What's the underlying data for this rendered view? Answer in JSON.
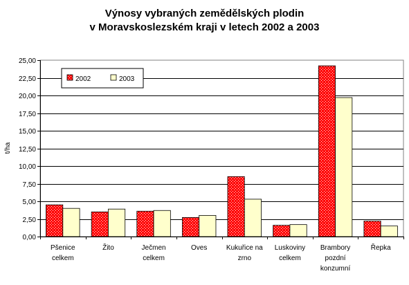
{
  "chart_data": {
    "type": "bar",
    "title_lines": [
      "Výnosy vybraných zemědělských plodin",
      "v Moravskoslezském kraji v letech 2002 a 2003"
    ],
    "ylabel": "t/ha",
    "xlabel": "",
    "ylim": [
      0,
      25
    ],
    "ytick_step": 2.5,
    "ytick_labels": [
      "0,00",
      "2,50",
      "5,00",
      "7,50",
      "10,00",
      "12,50",
      "15,00",
      "17,50",
      "20,00",
      "22,50",
      "25,00"
    ],
    "grid": true,
    "legend_position": "top-left",
    "categories": [
      [
        "Pšenice",
        "celkem"
      ],
      [
        "Žito"
      ],
      [
        "Ječmen",
        "celkem"
      ],
      [
        "Oves"
      ],
      [
        "Kukuřice na",
        "zrno"
      ],
      [
        "Luskoviny",
        "celkem"
      ],
      [
        "Brambory",
        "pozdní",
        "konzumní"
      ],
      [
        "Řepka"
      ]
    ],
    "series": [
      {
        "name": "2002",
        "color": "#ff0000",
        "pattern": "dotted-red",
        "values": [
          4.5,
          3.5,
          3.6,
          2.7,
          8.5,
          1.6,
          24.2,
          2.2
        ]
      },
      {
        "name": "2003",
        "color": "#ffffcc",
        "values": [
          4.0,
          3.9,
          3.7,
          3.0,
          5.3,
          1.7,
          19.7,
          1.5
        ]
      }
    ]
  }
}
